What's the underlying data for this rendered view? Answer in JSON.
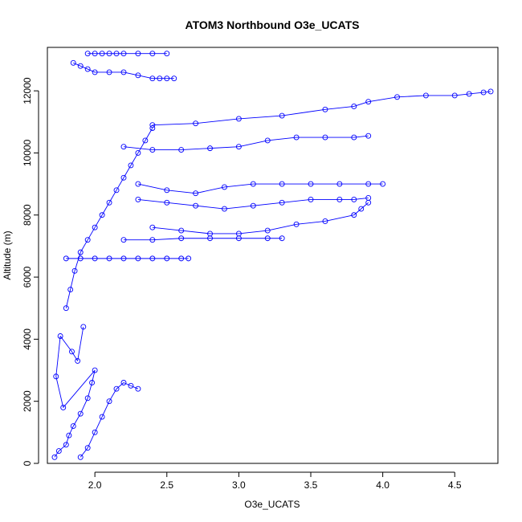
{
  "chart_data": {
    "type": "scatter",
    "title": "ATOM3 Northbound O3e_UCATS",
    "xlabel": "O3e_UCATS",
    "ylabel": "Altitude (m)",
    "xlim": [
      1.67,
      4.8
    ],
    "ylim": [
      0,
      13400
    ],
    "xticks": [
      2.0,
      2.5,
      3.0,
      3.5,
      4.0,
      4.5
    ],
    "xtick_labels": [
      "2.0",
      "2.5",
      "3.0",
      "3.5",
      "4.0",
      "4.5"
    ],
    "yticks": [
      0,
      2000,
      4000,
      6000,
      8000,
      10000,
      12000
    ],
    "ytick_labels": [
      "0",
      "2000",
      "4000",
      "6000",
      "8000",
      "10000",
      "12000"
    ],
    "color": "#0000ff",
    "marker": "open-circle",
    "lines": true,
    "grid": false,
    "legend": "none",
    "series": [
      {
        "x": [
          1.72,
          1.75,
          1.8,
          1.82,
          1.85,
          1.9,
          1.95,
          1.98,
          2.0,
          1.78,
          1.73,
          1.76,
          1.84,
          1.88,
          1.92
        ],
        "y": [
          200,
          400,
          600,
          900,
          1200,
          1600,
          2100,
          2600,
          3000,
          1800,
          2800,
          4100,
          3600,
          3300,
          4400
        ]
      },
      {
        "x": [
          1.8,
          1.83,
          1.86,
          1.9,
          1.95,
          2.0,
          2.05,
          2.1,
          2.15,
          2.2,
          2.25,
          2.3,
          2.35,
          2.4
        ],
        "y": [
          5000,
          5600,
          6200,
          6800,
          7200,
          7600,
          8000,
          8400,
          8800,
          9200,
          9600,
          10000,
          10400,
          10800
        ]
      },
      {
        "x": [
          2.3,
          2.5,
          2.7,
          2.9,
          3.1,
          3.3,
          3.5,
          3.7,
          3.9,
          4.0
        ],
        "y": [
          9000,
          8800,
          8700,
          8900,
          9000,
          9000,
          9000,
          9000,
          9000,
          9000
        ]
      },
      {
        "x": [
          2.3,
          2.5,
          2.7,
          2.9,
          3.1,
          3.3,
          3.5,
          3.7,
          3.8,
          3.9
        ],
        "y": [
          8500,
          8400,
          8300,
          8200,
          8300,
          8400,
          8500,
          8500,
          8500,
          8550
        ]
      },
      {
        "x": [
          2.2,
          2.4,
          2.6,
          2.8,
          3.0,
          3.2,
          3.4,
          3.6,
          3.8,
          3.9
        ],
        "y": [
          10200,
          10100,
          10100,
          10150,
          10200,
          10400,
          10500,
          10500,
          10500,
          10550
        ]
      },
      {
        "x": [
          2.4,
          2.7,
          3.0,
          3.3,
          3.6,
          3.8,
          3.9,
          4.1,
          4.3,
          4.5,
          4.6,
          4.7,
          4.75
        ],
        "y": [
          10900,
          10950,
          11100,
          11200,
          11400,
          11500,
          11650,
          11800,
          11850,
          11850,
          11900,
          11950,
          11980
        ]
      },
      {
        "x": [
          2.2,
          2.4,
          2.6,
          2.8,
          3.0,
          3.2,
          3.3
        ],
        "y": [
          7200,
          7200,
          7250,
          7250,
          7250,
          7250,
          7250
        ]
      },
      {
        "x": [
          2.4,
          2.6,
          2.8,
          3.0,
          3.2,
          3.4,
          3.6,
          3.8,
          3.85,
          3.9
        ],
        "y": [
          7600,
          7500,
          7400,
          7400,
          7500,
          7700,
          7800,
          8000,
          8200,
          8400
        ]
      },
      {
        "x": [
          1.95,
          2.0,
          2.05,
          2.1,
          2.15,
          2.2,
          2.3,
          2.4,
          2.5
        ],
        "y": [
          13200,
          13200,
          13200,
          13200,
          13200,
          13200,
          13200,
          13200,
          13200
        ]
      },
      {
        "x": [
          1.85,
          1.9,
          1.95,
          2.0,
          2.1,
          2.2,
          2.3,
          2.4,
          2.45,
          2.5,
          2.55
        ],
        "y": [
          12900,
          12800,
          12700,
          12600,
          12600,
          12600,
          12500,
          12400,
          12400,
          12400,
          12400
        ]
      },
      {
        "x": [
          1.8,
          1.9,
          2.0,
          2.1,
          2.2,
          2.3,
          2.4,
          2.5,
          2.6,
          2.65
        ],
        "y": [
          6600,
          6600,
          6600,
          6600,
          6600,
          6600,
          6600,
          6600,
          6600,
          6600
        ]
      },
      {
        "x": [
          1.9,
          1.95,
          2.0,
          2.05,
          2.1,
          2.15,
          2.2,
          2.25,
          2.3
        ],
        "y": [
          200,
          500,
          1000,
          1500,
          2000,
          2400,
          2600,
          2500,
          2400
        ]
      }
    ]
  }
}
